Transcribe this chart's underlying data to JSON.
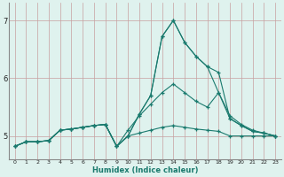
{
  "xlabel": "Humidex (Indice chaleur)",
  "bg_color": "#dff2ee",
  "grid_color": "#c8a0a0",
  "line_color": "#1a7a6e",
  "spine_color": "#888888",
  "xlim": [
    -0.5,
    23.5
  ],
  "ylim": [
    4.6,
    7.3
  ],
  "yticks": [
    5,
    6,
    7
  ],
  "xticks": [
    0,
    1,
    2,
    3,
    4,
    5,
    6,
    7,
    8,
    9,
    10,
    11,
    12,
    13,
    14,
    15,
    16,
    17,
    18,
    19,
    20,
    21,
    22,
    23
  ],
  "x": [
    0,
    1,
    2,
    3,
    4,
    5,
    6,
    7,
    8,
    9,
    10,
    11,
    12,
    13,
    14,
    15,
    16,
    17,
    18,
    19,
    20,
    21,
    22,
    23
  ],
  "series": [
    [
      4.82,
      4.9,
      4.9,
      4.92,
      5.1,
      5.12,
      5.15,
      5.18,
      5.2,
      4.82,
      5.0,
      5.38,
      5.7,
      6.72,
      7.0,
      6.62,
      6.38,
      6.2,
      6.1,
      5.3,
      5.18,
      5.08,
      5.05,
      5.0
    ],
    [
      4.82,
      4.9,
      4.9,
      4.92,
      5.1,
      5.12,
      5.15,
      5.18,
      5.2,
      4.82,
      5.0,
      5.38,
      5.7,
      6.72,
      7.0,
      6.62,
      6.38,
      6.2,
      5.75,
      5.3,
      5.18,
      5.08,
      5.05,
      5.0
    ],
    [
      4.82,
      4.9,
      4.9,
      4.92,
      5.1,
      5.12,
      5.15,
      5.18,
      5.2,
      4.82,
      5.1,
      5.35,
      5.55,
      5.75,
      5.9,
      5.75,
      5.6,
      5.5,
      5.75,
      5.35,
      5.2,
      5.1,
      5.05,
      5.0
    ],
    [
      4.82,
      4.9,
      4.9,
      4.92,
      5.1,
      5.12,
      5.15,
      5.18,
      5.2,
      4.82,
      5.0,
      5.05,
      5.1,
      5.15,
      5.18,
      5.15,
      5.12,
      5.1,
      5.08,
      5.0,
      5.0,
      5.0,
      5.0,
      5.0
    ]
  ]
}
